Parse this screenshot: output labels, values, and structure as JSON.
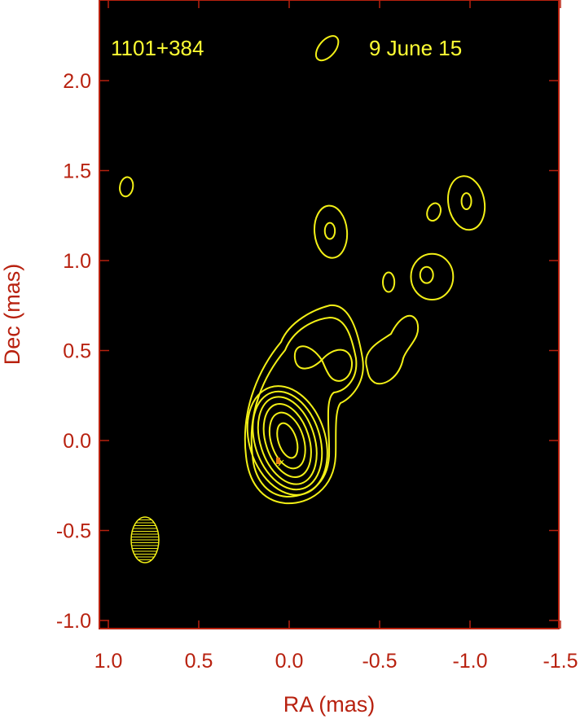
{
  "chart_data": {
    "type": "contour",
    "xlabel": "RA (mas)",
    "ylabel": "Dec (mas)",
    "xlim": [
      1.05,
      -1.5
    ],
    "ylim": [
      -1.05,
      2.45
    ],
    "x_ticks": [
      "1.0",
      "0.5",
      "0.0",
      "-0.5",
      "-1.0",
      "-1.5"
    ],
    "x_tick_values": [
      1.0,
      0.5,
      0.0,
      -0.5,
      -1.0,
      -1.5
    ],
    "y_ticks": [
      "2.0",
      "1.5",
      "1.0",
      "0.5",
      "0.0",
      "-0.5",
      "-1.0"
    ],
    "y_tick_values": [
      2.0,
      1.5,
      1.0,
      0.5,
      0.0,
      -0.5,
      -1.0
    ],
    "annotations": {
      "source": "1101+384",
      "date": "9 June 15"
    },
    "core": {
      "ra": 0.01,
      "dec": 0.0,
      "levels_semi_axes_mas": [
        [
          0.05,
          0.1
        ],
        [
          0.09,
          0.16
        ],
        [
          0.12,
          0.21
        ],
        [
          0.15,
          0.25
        ],
        [
          0.18,
          0.28
        ],
        [
          0.21,
          0.31
        ]
      ],
      "pa_deg": -18
    },
    "components": [
      {
        "ra": 0.9,
        "dec": 1.41,
        "a": 0.036,
        "b": 0.054,
        "pa": 10
      },
      {
        "ra": -0.21,
        "dec": 2.18,
        "a": 0.045,
        "b": 0.08,
        "pa": 40
      },
      {
        "ra": -0.23,
        "dec": 1.16,
        "a": 0.09,
        "b": 0.145,
        "pa": -5
      },
      {
        "ra": -0.225,
        "dec": 1.165,
        "a": 0.028,
        "b": 0.045,
        "pa": 0
      },
      {
        "ra": -0.55,
        "dec": 0.88,
        "a": 0.032,
        "b": 0.054,
        "pa": 0
      },
      {
        "ra": -0.8,
        "dec": 1.27,
        "a": 0.036,
        "b": 0.05,
        "pa": 20
      },
      {
        "ra": -0.98,
        "dec": 1.32,
        "a": 0.1,
        "b": 0.15,
        "pa": -10
      },
      {
        "ra": -0.98,
        "dec": 1.33,
        "a": 0.027,
        "b": 0.045,
        "pa": 0
      },
      {
        "ra": -0.79,
        "dec": 0.91,
        "a": 0.117,
        "b": 0.127,
        "pa": 0
      },
      {
        "ra": -0.76,
        "dec": 0.92,
        "a": 0.036,
        "b": 0.045,
        "pa": 0
      }
    ],
    "beam": {
      "ra": 0.8,
      "dec": -0.55,
      "a": 0.077,
      "b": 0.127,
      "pa": 0
    },
    "colors": {
      "axes": "#b8210f",
      "contours": "#f3f016",
      "background": "#000000"
    }
  }
}
